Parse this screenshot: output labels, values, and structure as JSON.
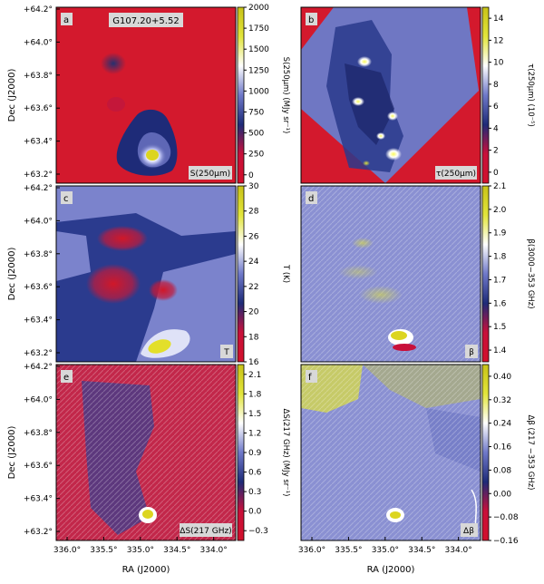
{
  "figure": {
    "field_name": "G107.20+5.52",
    "xlabel": "RA (J2000)",
    "ylabel": "Dec (J2000)",
    "ra_ticks": [
      "336.0°",
      "335.5°",
      "335.0°",
      "334.5°",
      "334.0°"
    ],
    "dec_ticks": [
      "+64.2°",
      "+64.0°",
      "+63.8°",
      "+63.6°",
      "+63.4°",
      "+63.2°"
    ]
  },
  "chart_data": [
    {
      "panel": "a",
      "type": "heatmap",
      "quantity_tag": "S(250µm)",
      "colorbar_label": "S(250µm) (MJy sr⁻¹)",
      "colorbar_ticks": [
        "2000",
        "1750",
        "1500",
        "1250",
        "1000",
        "750",
        "500",
        "250",
        "0"
      ],
      "range": [
        -100,
        2000
      ],
      "colormap": [
        "#d2102b",
        "#c8103a",
        "#1e2b78",
        "#6f79c9",
        "#ffffff",
        "#e2e53b",
        "#c8c217"
      ],
      "features": [
        {
          "kind": "peak",
          "ra": 334.86,
          "dec": 63.32,
          "level": 2000
        },
        {
          "kind": "extended_emission",
          "ra": 334.98,
          "dec": 63.42,
          "level": 550
        },
        {
          "kind": "clump",
          "ra": 335.48,
          "dec": 63.9,
          "level": 420
        }
      ]
    },
    {
      "panel": "b",
      "type": "heatmap",
      "quantity_tag": "τ(250µm)",
      "colorbar_label": "τ(250µm) (10⁻⁵)",
      "colorbar_ticks": [
        "14",
        "12",
        "10",
        "8",
        "6",
        "4",
        "2",
        "0"
      ],
      "range": [
        -1,
        15
      ],
      "colormap": [
        "#d2102b",
        "#c8103a",
        "#1e2b78",
        "#6f79c9",
        "#ffffff",
        "#e2e53b",
        "#c8c217"
      ]
    },
    {
      "panel": "c",
      "type": "heatmap",
      "quantity_tag": "T",
      "colorbar_label": "T (K)",
      "colorbar_ticks": [
        "30",
        "28",
        "26",
        "24",
        "22",
        "20",
        "18",
        "16"
      ],
      "range": [
        16,
        30
      ],
      "colormap": [
        "#d2102b",
        "#c8103a",
        "#1e2b78",
        "#6f79c9",
        "#ffffff",
        "#e2e53b",
        "#c8c217"
      ],
      "features": [
        {
          "kind": "cold_region",
          "ra": 335.4,
          "dec": 63.6,
          "level": 17
        },
        {
          "kind": "warm_spot",
          "ra": 334.9,
          "dec": 63.24,
          "level": 30
        }
      ]
    },
    {
      "panel": "d",
      "type": "heatmap",
      "quantity_tag": "β",
      "colorbar_label": "β(3000−353 GHz)",
      "colorbar_ticks": [
        "2.1",
        "2.0",
        "1.9",
        "1.8",
        "1.7",
        "1.6",
        "1.5",
        "1.4"
      ],
      "range": [
        1.35,
        2.1
      ],
      "colormap": [
        "#d2102b",
        "#c8103a",
        "#1e2b78",
        "#6f79c9",
        "#ffffff",
        "#e2e53b",
        "#c8c217"
      ]
    },
    {
      "panel": "e",
      "type": "heatmap",
      "quantity_tag": "ΔS(217 GHz)",
      "colorbar_label": "ΔS(217 GHz) (MJy sr⁻¹)",
      "colorbar_ticks": [
        "2.1",
        "1.8",
        "1.5",
        "1.2",
        "0.9",
        "0.6",
        "0.3",
        "0.0",
        "−0.3"
      ],
      "range": [
        -0.45,
        2.25
      ],
      "colormap": [
        "#d2102b",
        "#c8103a",
        "#1e2b78",
        "#6f79c9",
        "#ffffff",
        "#e2e53b",
        "#c8c217"
      ]
    },
    {
      "panel": "f",
      "type": "heatmap",
      "quantity_tag": "Δβ",
      "colorbar_label": "Δβ (217 −353 GHz)",
      "colorbar_ticks": [
        "0.40",
        "0.32",
        "0.24",
        "0.16",
        "0.08",
        "0.00",
        "−0.08",
        "−0.16"
      ],
      "range": [
        -0.16,
        0.44
      ],
      "colormap": [
        "#d2102b",
        "#c8103a",
        "#1e2b78",
        "#6f79c9",
        "#ffffff",
        "#e2e53b",
        "#c8c217"
      ]
    }
  ],
  "panel_letters": [
    "a",
    "b",
    "c",
    "d",
    "e",
    "f"
  ]
}
